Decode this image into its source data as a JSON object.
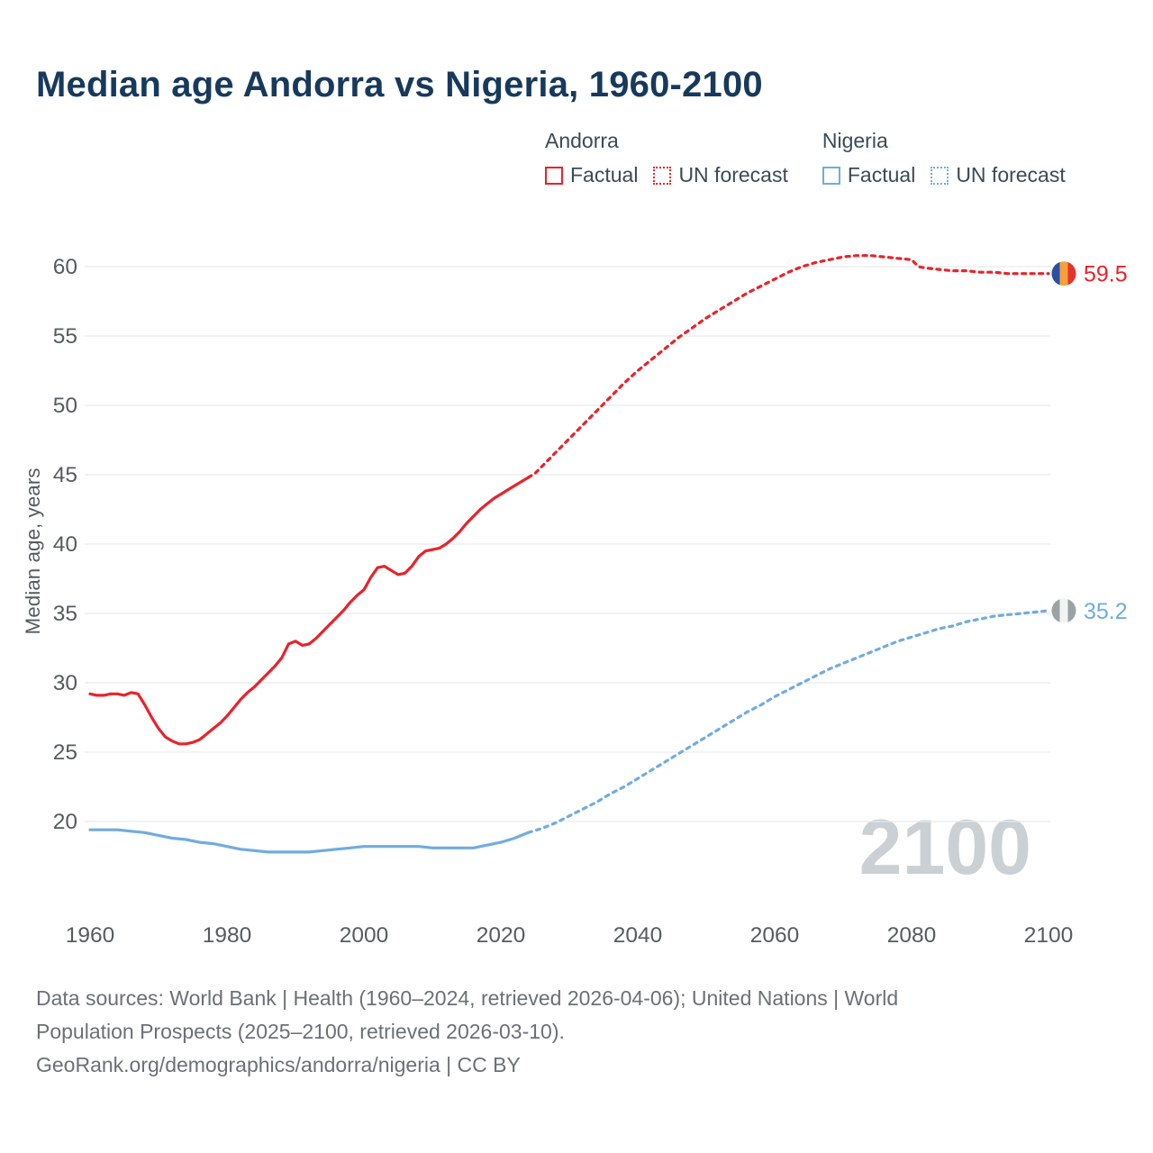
{
  "page": {
    "title": "Median age Andorra vs Nigeria, 1960-2100",
    "watermark": "2100",
    "footer_lines": [
      "Data sources: World Bank | Health (1960–2024, retrieved 2026-04-06); United Nations | World",
      "Population Prospects (2025–2100, retrieved 2026-03-10).",
      "GeoRank.org/demographics/andorra/nigeria | CC BY"
    ]
  },
  "colors": {
    "title": "#17395c",
    "axis_text": "#565b5f",
    "grid": "#e9e9e9",
    "footer_text": "#6b7075",
    "watermark": "#cbd0d4",
    "andorra": "#e8232b",
    "nigeria": "#70acdf"
  },
  "legend": {
    "groups": [
      {
        "name": "Andorra",
        "color": "#e8232b",
        "items": [
          {
            "label": "Factual",
            "style": "solid"
          },
          {
            "label": "UN forecast",
            "style": "dotted"
          }
        ]
      },
      {
        "name": "Nigeria",
        "color": "#70acdf",
        "items": [
          {
            "label": "Factual",
            "style": "solid"
          },
          {
            "label": "UN forecast",
            "style": "dotted"
          }
        ]
      }
    ]
  },
  "chart_data": {
    "type": "line",
    "title": "Median age Andorra vs Nigeria, 1960-2100",
    "xlabel": "",
    "ylabel": "Median age, years",
    "xlim": [
      1953,
      2112
    ],
    "ylim": [
      16,
      62.5
    ],
    "xticks": [
      1960,
      1980,
      2000,
      2020,
      2040,
      2060,
      2080,
      2100
    ],
    "yticks": [
      20,
      25,
      30,
      35,
      40,
      45,
      50,
      55,
      60
    ],
    "grid": "horizontal",
    "legend_position": "top-right",
    "forecast_boundary_year": 2024,
    "series": [
      {
        "name": "Andorra",
        "color": "#e8232b",
        "end_label": "59.5",
        "end_value": 59.5,
        "flag": [
          "#2a50a5",
          "#f6a03c",
          "#e5332e"
        ],
        "factual": [
          [
            1960,
            29.2
          ],
          [
            1961,
            29.1
          ],
          [
            1962,
            29.1
          ],
          [
            1963,
            29.2
          ],
          [
            1964,
            29.2
          ],
          [
            1965,
            29.1
          ],
          [
            1966,
            29.3
          ],
          [
            1967,
            29.2
          ],
          [
            1968,
            28.4
          ],
          [
            1969,
            27.5
          ],
          [
            1970,
            26.7
          ],
          [
            1971,
            26.1
          ],
          [
            1972,
            25.8
          ],
          [
            1973,
            25.6
          ],
          [
            1974,
            25.6
          ],
          [
            1975,
            25.7
          ],
          [
            1976,
            25.9
          ],
          [
            1977,
            26.3
          ],
          [
            1978,
            26.7
          ],
          [
            1979,
            27.1
          ],
          [
            1980,
            27.6
          ],
          [
            1981,
            28.2
          ],
          [
            1982,
            28.8
          ],
          [
            1983,
            29.3
          ],
          [
            1984,
            29.7
          ],
          [
            1985,
            30.2
          ],
          [
            1986,
            30.7
          ],
          [
            1987,
            31.2
          ],
          [
            1988,
            31.8
          ],
          [
            1989,
            32.8
          ],
          [
            1990,
            33.0
          ],
          [
            1991,
            32.7
          ],
          [
            1992,
            32.8
          ],
          [
            1993,
            33.2
          ],
          [
            1994,
            33.7
          ],
          [
            1995,
            34.2
          ],
          [
            1996,
            34.7
          ],
          [
            1997,
            35.2
          ],
          [
            1998,
            35.8
          ],
          [
            1999,
            36.3
          ],
          [
            2000,
            36.7
          ],
          [
            2001,
            37.6
          ],
          [
            2002,
            38.3
          ],
          [
            2003,
            38.4
          ],
          [
            2004,
            38.1
          ],
          [
            2005,
            37.8
          ],
          [
            2006,
            37.9
          ],
          [
            2007,
            38.4
          ],
          [
            2008,
            39.1
          ],
          [
            2009,
            39.5
          ],
          [
            2010,
            39.6
          ],
          [
            2011,
            39.7
          ],
          [
            2012,
            40.0
          ],
          [
            2013,
            40.4
          ],
          [
            2014,
            40.9
          ],
          [
            2015,
            41.5
          ],
          [
            2016,
            42.0
          ],
          [
            2017,
            42.5
          ],
          [
            2018,
            42.9
          ],
          [
            2019,
            43.3
          ],
          [
            2020,
            43.6
          ],
          [
            2021,
            43.9
          ],
          [
            2022,
            44.2
          ],
          [
            2023,
            44.5
          ],
          [
            2024,
            44.8
          ]
        ],
        "forecast": [
          [
            2024,
            44.8
          ],
          [
            2025,
            45.1
          ],
          [
            2026,
            45.6
          ],
          [
            2028,
            46.6
          ],
          [
            2030,
            47.6
          ],
          [
            2032,
            48.6
          ],
          [
            2034,
            49.6
          ],
          [
            2036,
            50.6
          ],
          [
            2038,
            51.6
          ],
          [
            2040,
            52.5
          ],
          [
            2042,
            53.3
          ],
          [
            2044,
            54.1
          ],
          [
            2046,
            54.9
          ],
          [
            2048,
            55.6
          ],
          [
            2050,
            56.3
          ],
          [
            2052,
            56.9
          ],
          [
            2054,
            57.5
          ],
          [
            2056,
            58.1
          ],
          [
            2058,
            58.6
          ],
          [
            2060,
            59.1
          ],
          [
            2062,
            59.6
          ],
          [
            2064,
            60.0
          ],
          [
            2066,
            60.3
          ],
          [
            2068,
            60.5
          ],
          [
            2070,
            60.7
          ],
          [
            2072,
            60.8
          ],
          [
            2074,
            60.8
          ],
          [
            2076,
            60.7
          ],
          [
            2078,
            60.6
          ],
          [
            2080,
            60.5
          ],
          [
            2081,
            60.0
          ],
          [
            2082,
            59.9
          ],
          [
            2084,
            59.8
          ],
          [
            2086,
            59.7
          ],
          [
            2088,
            59.7
          ],
          [
            2090,
            59.6
          ],
          [
            2092,
            59.6
          ],
          [
            2094,
            59.5
          ],
          [
            2096,
            59.5
          ],
          [
            2098,
            59.5
          ],
          [
            2100,
            59.5
          ]
        ]
      },
      {
        "name": "Nigeria",
        "color": "#70acdf",
        "end_label": "35.2",
        "end_value": 35.2,
        "flag": [
          "#9aa2a6",
          "#f2f4f4",
          "#9aa2a6"
        ],
        "factual": [
          [
            1960,
            19.4
          ],
          [
            1962,
            19.4
          ],
          [
            1964,
            19.4
          ],
          [
            1966,
            19.3
          ],
          [
            1968,
            19.2
          ],
          [
            1970,
            19.0
          ],
          [
            1972,
            18.8
          ],
          [
            1974,
            18.7
          ],
          [
            1976,
            18.5
          ],
          [
            1978,
            18.4
          ],
          [
            1980,
            18.2
          ],
          [
            1982,
            18.0
          ],
          [
            1984,
            17.9
          ],
          [
            1986,
            17.8
          ],
          [
            1988,
            17.8
          ],
          [
            1990,
            17.8
          ],
          [
            1992,
            17.8
          ],
          [
            1994,
            17.9
          ],
          [
            1996,
            18.0
          ],
          [
            1998,
            18.1
          ],
          [
            2000,
            18.2
          ],
          [
            2002,
            18.2
          ],
          [
            2004,
            18.2
          ],
          [
            2006,
            18.2
          ],
          [
            2008,
            18.2
          ],
          [
            2010,
            18.1
          ],
          [
            2012,
            18.1
          ],
          [
            2014,
            18.1
          ],
          [
            2016,
            18.1
          ],
          [
            2018,
            18.3
          ],
          [
            2020,
            18.5
          ],
          [
            2022,
            18.8
          ],
          [
            2024,
            19.2
          ]
        ],
        "forecast": [
          [
            2024,
            19.2
          ],
          [
            2026,
            19.5
          ],
          [
            2028,
            19.9
          ],
          [
            2030,
            20.4
          ],
          [
            2032,
            20.9
          ],
          [
            2034,
            21.4
          ],
          [
            2036,
            22.0
          ],
          [
            2038,
            22.5
          ],
          [
            2040,
            23.1
          ],
          [
            2042,
            23.7
          ],
          [
            2044,
            24.3
          ],
          [
            2046,
            24.9
          ],
          [
            2048,
            25.5
          ],
          [
            2050,
            26.1
          ],
          [
            2052,
            26.7
          ],
          [
            2054,
            27.3
          ],
          [
            2056,
            27.9
          ],
          [
            2058,
            28.4
          ],
          [
            2060,
            29.0
          ],
          [
            2062,
            29.5
          ],
          [
            2064,
            30.0
          ],
          [
            2066,
            30.5
          ],
          [
            2068,
            31.0
          ],
          [
            2070,
            31.4
          ],
          [
            2072,
            31.8
          ],
          [
            2074,
            32.2
          ],
          [
            2076,
            32.6
          ],
          [
            2078,
            33.0
          ],
          [
            2080,
            33.3
          ],
          [
            2082,
            33.6
          ],
          [
            2084,
            33.9
          ],
          [
            2086,
            34.1
          ],
          [
            2088,
            34.4
          ],
          [
            2090,
            34.6
          ],
          [
            2092,
            34.8
          ],
          [
            2094,
            34.9
          ],
          [
            2096,
            35.0
          ],
          [
            2098,
            35.1
          ],
          [
            2100,
            35.2
          ]
        ]
      }
    ]
  }
}
